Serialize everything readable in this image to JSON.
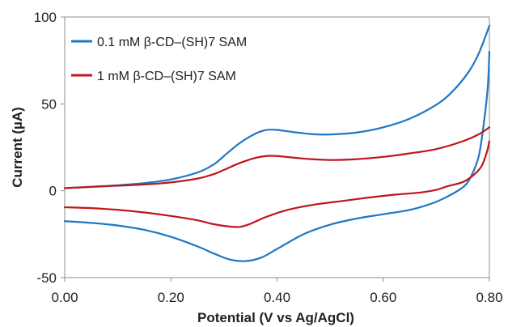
{
  "chart_data": {
    "type": "line",
    "xlabel": "Potential  (V vs Ag/AgCl)",
    "ylabel": "Current (µA)",
    "xlim": [
      0.0,
      0.8
    ],
    "ylim": [
      -50,
      100
    ],
    "xticks": [
      "0.00",
      "0.20",
      "0.40",
      "0.60",
      "0.80"
    ],
    "yticks": [
      "100",
      "50",
      "0",
      "-50"
    ],
    "grid": false,
    "legend_position": "top-left",
    "series": [
      {
        "name": "0.1 mM β-CD–(SH)7 SAM",
        "color": "#1f77c4",
        "forward": [
          [
            0.0,
            1.5
          ],
          [
            0.05,
            2.3
          ],
          [
            0.1,
            3.2
          ],
          [
            0.15,
            4.4
          ],
          [
            0.2,
            6.5
          ],
          [
            0.25,
            10.5
          ],
          [
            0.28,
            15
          ],
          [
            0.3,
            20
          ],
          [
            0.33,
            27.5
          ],
          [
            0.36,
            33.0
          ],
          [
            0.38,
            35.0
          ],
          [
            0.4,
            35.0
          ],
          [
            0.43,
            33.8
          ],
          [
            0.47,
            32.5
          ],
          [
            0.5,
            32.4
          ],
          [
            0.55,
            33.5
          ],
          [
            0.6,
            36.5
          ],
          [
            0.65,
            41.5
          ],
          [
            0.7,
            49.5
          ],
          [
            0.73,
            57.0
          ],
          [
            0.76,
            68.0
          ],
          [
            0.78,
            79.0
          ],
          [
            0.8,
            95.0
          ]
        ],
        "reverse": [
          [
            0.8,
            80.0
          ],
          [
            0.797,
            60.0
          ],
          [
            0.79,
            40.0
          ],
          [
            0.78,
            20.0
          ],
          [
            0.765,
            8.0
          ],
          [
            0.75,
            2.0
          ],
          [
            0.72,
            -3.5
          ],
          [
            0.69,
            -7.5
          ],
          [
            0.65,
            -11.0
          ],
          [
            0.6,
            -13.5
          ],
          [
            0.55,
            -16.0
          ],
          [
            0.5,
            -19.5
          ],
          [
            0.45,
            -25.0
          ],
          [
            0.4,
            -33.5
          ],
          [
            0.37,
            -38.5
          ],
          [
            0.34,
            -40.5
          ],
          [
            0.31,
            -39.5
          ],
          [
            0.28,
            -36.0
          ],
          [
            0.25,
            -32.0
          ],
          [
            0.2,
            -26.5
          ],
          [
            0.15,
            -22.5
          ],
          [
            0.1,
            -20.0
          ],
          [
            0.05,
            -18.5
          ],
          [
            0.0,
            -17.5
          ]
        ]
      },
      {
        "name": "1 mM β-CD–(SH)7 SAM",
        "color": "#c0151b",
        "forward": [
          [
            0.0,
            1.5
          ],
          [
            0.05,
            2.2
          ],
          [
            0.1,
            2.9
          ],
          [
            0.15,
            3.6
          ],
          [
            0.2,
            4.8
          ],
          [
            0.25,
            7.0
          ],
          [
            0.28,
            9.5
          ],
          [
            0.3,
            12.0
          ],
          [
            0.33,
            16.0
          ],
          [
            0.36,
            19.0
          ],
          [
            0.38,
            20.0
          ],
          [
            0.4,
            20.0
          ],
          [
            0.45,
            18.5
          ],
          [
            0.5,
            17.7
          ],
          [
            0.55,
            18.2
          ],
          [
            0.6,
            19.5
          ],
          [
            0.65,
            21.5
          ],
          [
            0.7,
            24.0
          ],
          [
            0.75,
            28.5
          ],
          [
            0.78,
            32.5
          ],
          [
            0.8,
            36.5
          ]
        ],
        "reverse": [
          [
            0.8,
            28.5
          ],
          [
            0.795,
            22.0
          ],
          [
            0.785,
            14.0
          ],
          [
            0.77,
            9.0
          ],
          [
            0.75,
            5.0
          ],
          [
            0.72,
            2.5
          ],
          [
            0.7,
            0.5
          ],
          [
            0.67,
            -1.0
          ],
          [
            0.62,
            -2.3
          ],
          [
            0.57,
            -4.0
          ],
          [
            0.52,
            -6.0
          ],
          [
            0.47,
            -8.0
          ],
          [
            0.42,
            -11.0
          ],
          [
            0.38,
            -15.0
          ],
          [
            0.35,
            -19.0
          ],
          [
            0.33,
            -20.8
          ],
          [
            0.31,
            -20.6
          ],
          [
            0.28,
            -19.2
          ],
          [
            0.25,
            -17.0
          ],
          [
            0.2,
            -14.5
          ],
          [
            0.15,
            -12.5
          ],
          [
            0.1,
            -11.0
          ],
          [
            0.05,
            -10.0
          ],
          [
            0.0,
            -9.5
          ]
        ]
      }
    ]
  }
}
